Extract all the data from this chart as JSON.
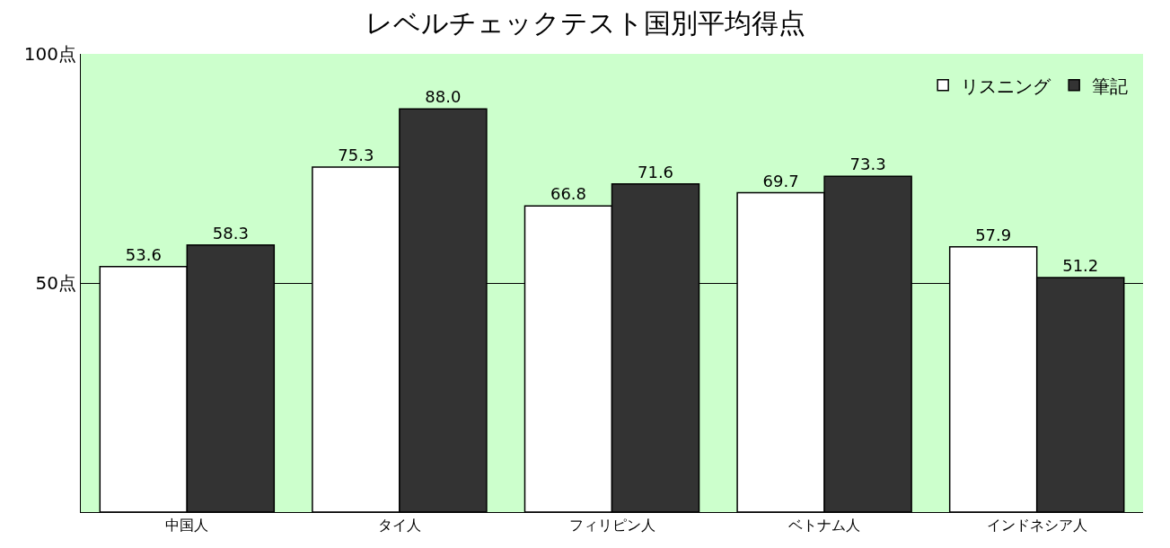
{
  "chart_data": {
    "type": "bar",
    "title": "レベルチェックテスト国別平均得点",
    "categories": [
      "中国人",
      "タイ人",
      "フィリピン人",
      "ベトナム人",
      "インドネシア人"
    ],
    "series": [
      {
        "name": "リスニング",
        "color": "#ffffff",
        "values": [
          53.6,
          75.3,
          66.8,
          69.7,
          57.9
        ]
      },
      {
        "name": "筆記",
        "color": "#333333",
        "values": [
          58.3,
          88.0,
          71.6,
          73.3,
          51.2
        ]
      }
    ],
    "value_labels": [
      [
        "53.6",
        "75.3",
        "66.8",
        "69.7",
        "57.9"
      ],
      [
        "58.3",
        "88.0",
        "71.6",
        "73.3",
        "51.2"
      ]
    ],
    "ylim": [
      0,
      100
    ],
    "yticks": [
      {
        "value": 0,
        "label": null
      },
      {
        "value": 50,
        "label": "50点"
      },
      {
        "value": 100,
        "label": "100点"
      }
    ],
    "grid": "y",
    "legend": "top right"
  }
}
